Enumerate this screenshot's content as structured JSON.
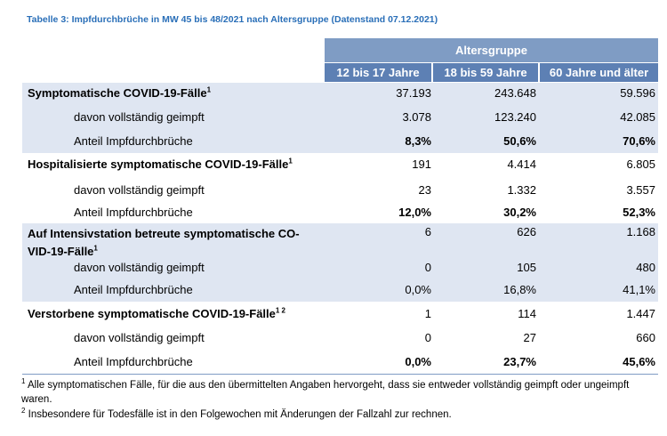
{
  "caption": "Tabelle 3: Impfdurchbrüche in MW 45 bis 48/2021 nach Altersgruppe (Datenstand 07.12.2021)",
  "header": {
    "group": "Altersgruppe",
    "columns": [
      "12 bis 17 Jahre",
      "18 bis 59 Jahre",
      "60 Jahre und älter"
    ]
  },
  "sections": [
    {
      "title": "Symptomatische COVID-19-Fälle",
      "title_sup": "1",
      "values": [
        "37.193",
        "243.648",
        "59.596"
      ],
      "vaccinated_label": "davon vollständig geimpft",
      "vaccinated": [
        "3.078",
        "123.240",
        "42.085"
      ],
      "share_label": "Anteil Impfdurchbrüche",
      "share": [
        "8,3%",
        "50,6%",
        "70,6%"
      ]
    },
    {
      "title": "Hospitalisierte symptomatische COVID-19-Fälle",
      "title_sup": "1",
      "values": [
        "191",
        "4.414",
        "6.805"
      ],
      "vaccinated_label": "davon vollständig geimpft",
      "vaccinated": [
        "23",
        "1.332",
        "3.557"
      ],
      "share_label": "Anteil Impfdurchbrüche",
      "share": [
        "12,0%",
        "30,2%",
        "52,3%"
      ]
    },
    {
      "title": "Auf Intensivstation betreute symptomatische CO-VID-19-Fälle",
      "title_sup": "1",
      "values": [
        "6",
        "626",
        "1.168"
      ],
      "vaccinated_label": "davon vollständig geimpft",
      "vaccinated": [
        "0",
        "105",
        "480"
      ],
      "share_label": "Anteil Impfdurchbrüche",
      "share": [
        "0,0%",
        "16,8%",
        "41,1%"
      ]
    },
    {
      "title": "Verstorbene symptomatische COVID-19-Fälle",
      "title_sup": "1 2",
      "values": [
        "1",
        "114",
        "1.447"
      ],
      "vaccinated_label": "davon vollständig geimpft",
      "vaccinated": [
        "0",
        "27",
        "660"
      ],
      "share_label": "Anteil Impfdurchbrüche",
      "share": [
        "0,0%",
        "23,7%",
        "45,6%"
      ]
    }
  ],
  "footnotes": [
    {
      "mark": "1",
      "text": "Alle symptomatischen Fälle, für die aus den übermittelten Angaben hervorgeht, dass sie entweder vollständig geimpft oder ungeimpft waren."
    },
    {
      "mark": "2",
      "text": "Insbesondere für Todesfälle ist in den Folgewochen mit Änderungen der Fallzahl zur rechnen."
    }
  ],
  "colors": {
    "caption": "#2a6fb8",
    "header_group_bg": "#7f9cc4",
    "header_col_bg": "#5d80b4",
    "shaded_row_bg": "#dfe6f2"
  }
}
